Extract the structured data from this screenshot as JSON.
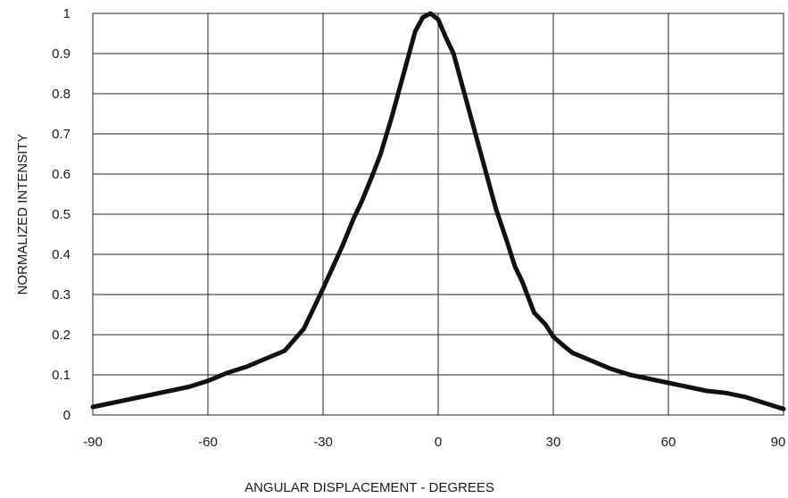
{
  "chart_data": {
    "type": "line",
    "title": "",
    "xlabel": "ANGULAR DISPLACEMENT - DEGREES",
    "ylabel": "NORMALIZED INTENSITY",
    "xlim": [
      -90,
      90
    ],
    "ylim": [
      0,
      1
    ],
    "x_ticks": [
      -90,
      -60,
      -30,
      0,
      30,
      60,
      90
    ],
    "y_ticks": [
      0,
      0.1,
      0.2,
      0.3,
      0.4,
      0.5,
      0.6,
      0.7,
      0.8,
      0.9,
      1
    ],
    "x_tick_labels": [
      "-90",
      "-60",
      "-30",
      "0",
      "30",
      "60",
      "90"
    ],
    "y_tick_labels": [
      "0",
      "0.1",
      "0.2",
      "0.3",
      "0.4",
      "0.5",
      "0.6",
      "0.7",
      "0.8",
      "0.9",
      "1"
    ],
    "grid": true,
    "legend": "none",
    "series": [
      {
        "color": "#111111",
        "x": [
          -90,
          -85,
          -80,
          -75,
          -70,
          -65,
          -60,
          -55,
          -50,
          -45,
          -40,
          -35,
          -30,
          -25,
          -22,
          -20,
          -17,
          -15,
          -12,
          -10,
          -8,
          -6,
          -4,
          -2,
          0,
          2,
          4,
          6,
          8,
          10,
          12,
          15,
          18,
          20,
          22,
          25,
          28,
          30,
          33,
          35,
          40,
          45,
          50,
          55,
          60,
          65,
          70,
          75,
          80,
          85,
          90
        ],
        "y": [
          0.02,
          0.03,
          0.04,
          0.05,
          0.06,
          0.07,
          0.085,
          0.105,
          0.12,
          0.14,
          0.16,
          0.215,
          0.315,
          0.42,
          0.49,
          0.53,
          0.6,
          0.65,
          0.745,
          0.815,
          0.885,
          0.955,
          0.99,
          1.0,
          0.985,
          0.94,
          0.9,
          0.83,
          0.76,
          0.69,
          0.62,
          0.515,
          0.43,
          0.37,
          0.33,
          0.255,
          0.225,
          0.195,
          0.17,
          0.155,
          0.135,
          0.115,
          0.1,
          0.09,
          0.08,
          0.07,
          0.06,
          0.055,
          0.045,
          0.03,
          0.015
        ]
      }
    ]
  }
}
